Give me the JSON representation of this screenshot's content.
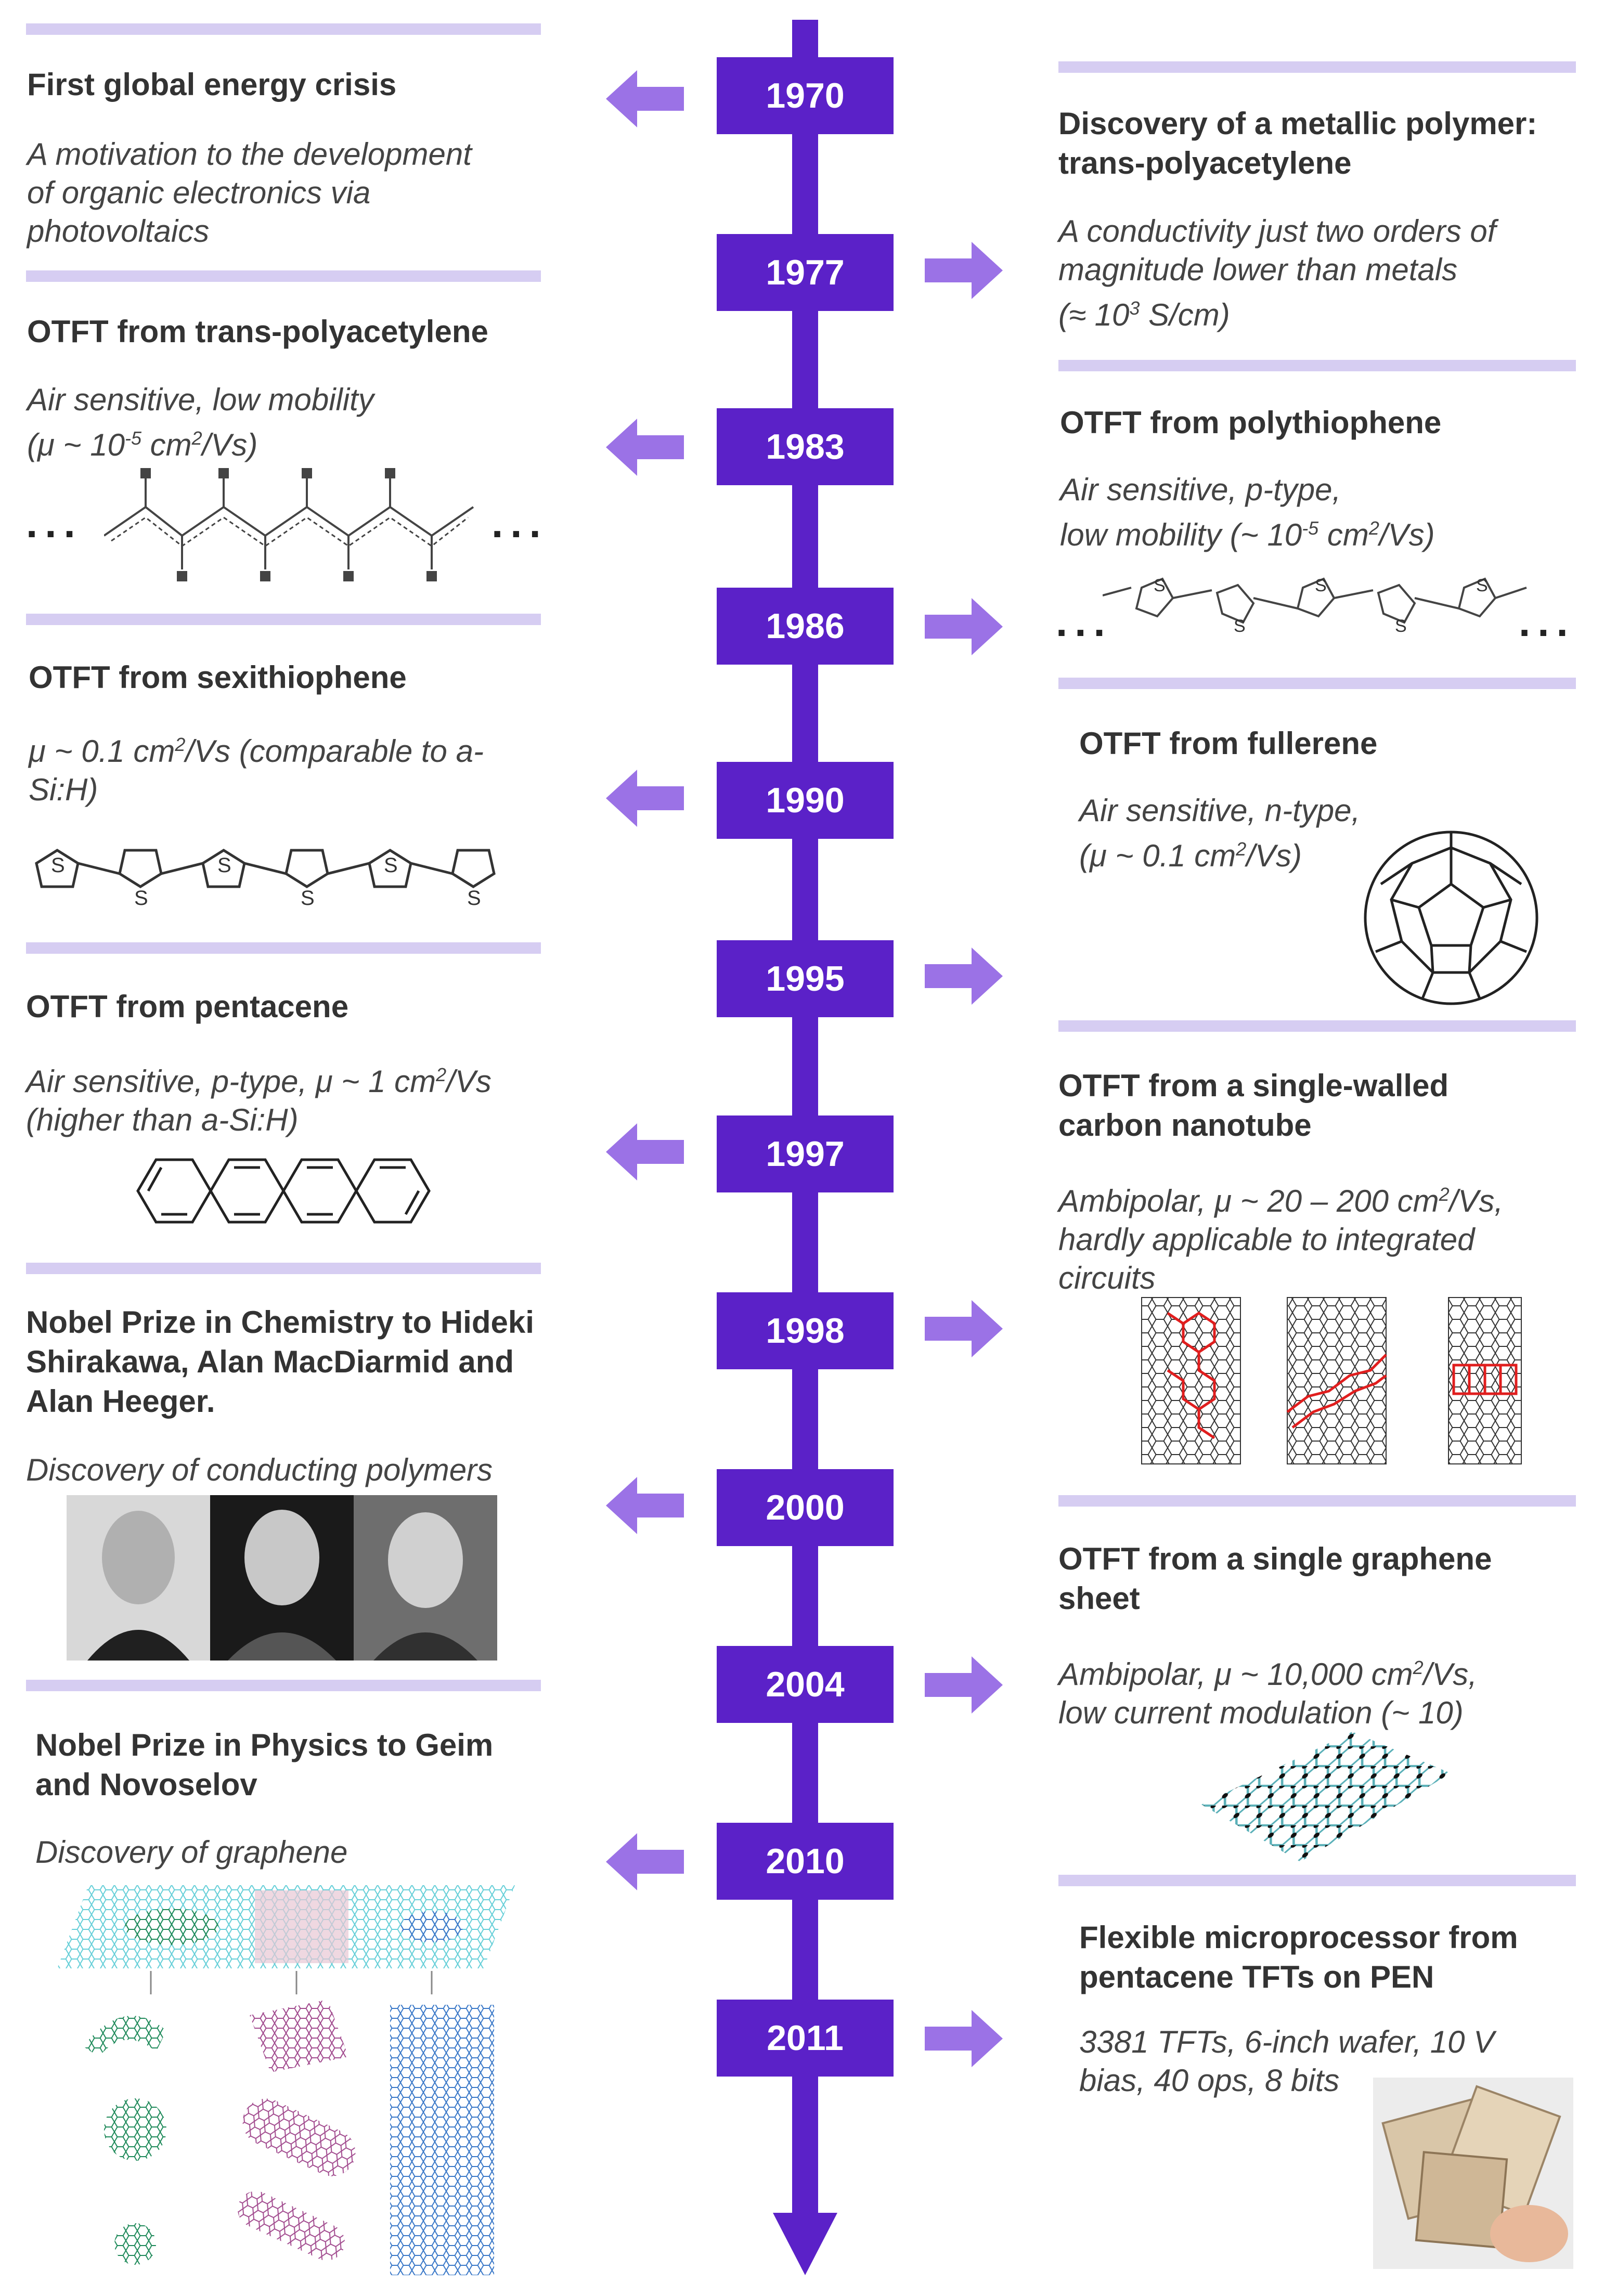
{
  "years": [
    "1970",
    "1977",
    "1983",
    "1986",
    "1990",
    "1995",
    "1997",
    "1998",
    "2000",
    "2004",
    "2010",
    "2011"
  ],
  "events": {
    "e1970": {
      "title": "First global energy crisis",
      "desc": "A motivation to the development of organic electronics via photovoltaics"
    },
    "e1977": {
      "title": "Discovery of a metallic polymer: trans-polyacetylene",
      "desc_a": "A conductivity just two orders of magnitude lower than metals",
      "desc_b": "(≈ 10",
      "desc_sup": "3",
      "desc_c": " S/cm)"
    },
    "e1983": {
      "title": "OTFT from trans-polyacetylene",
      "desc_a": "Air sensitive, low mobility",
      "desc_b": "(μ ~ 10",
      "desc_sup": "-5",
      "desc_c": " cm",
      "desc_sup2": "2",
      "desc_d": "/Vs)",
      "dots": "..."
    },
    "e1986": {
      "title": "OTFT from polythiophene",
      "desc_a": "Air sensitive, p-type,",
      "desc_b": "low mobility (~ 10",
      "desc_sup": "-5",
      "desc_c": " cm",
      "desc_sup2": "2",
      "desc_d": "/Vs)",
      "dots": "...",
      "ring_label": "S"
    },
    "e1990": {
      "title": "OTFT from sexithiophene",
      "desc_a": "μ ~ 0.1 cm",
      "desc_sup": "2",
      "desc_b": "/Vs   (comparable to a-Si:H)",
      "ring_label": "S"
    },
    "e1995": {
      "title": "OTFT from fullerene",
      "desc_a": "Air sensitive, n-type,",
      "desc_b": "(μ ~ 0.1 cm",
      "desc_sup": "2",
      "desc_c": "/Vs)"
    },
    "e1997": {
      "title": "OTFT from pentacene",
      "desc_a": "Air sensitive, p-type, μ ~ 1 cm",
      "desc_sup": "2",
      "desc_b": "/Vs",
      "desc_c": "(higher than a-Si:H)"
    },
    "e1998": {
      "title": "OTFT from a single-walled carbon nanotube",
      "desc_a": "Ambipolar, μ ~ 20 – 200 cm",
      "desc_sup": "2",
      "desc_b": "/Vs, hardly applicable to integrated circuits"
    },
    "e2000": {
      "title": "Nobel Prize in Chemistry to Hideki Shirakawa, Alan MacDiarmid and Alan Heeger.",
      "desc": "Discovery of conducting polymers"
    },
    "e2004": {
      "title": "OTFT from a single graphene sheet",
      "desc_a": "Ambipolar, μ ~ 10,000 cm",
      "desc_sup": "2",
      "desc_b": "/Vs,",
      "desc_c": "low current modulation (~ 10)"
    },
    "e2010": {
      "title": "Nobel Prize in Physics to Geim and Novoselov",
      "desc": "Discovery of graphene"
    },
    "e2011": {
      "title": "Flexible microprocessor from pentacene TFTs on PEN",
      "desc": "3381 TFTs, 6-inch wafer, 10 V bias, 40 ops, 8 bits"
    }
  },
  "colors": {
    "primary": "#5b21c8",
    "arrow": "#9b72e6",
    "separator": "#d6cdf2"
  }
}
